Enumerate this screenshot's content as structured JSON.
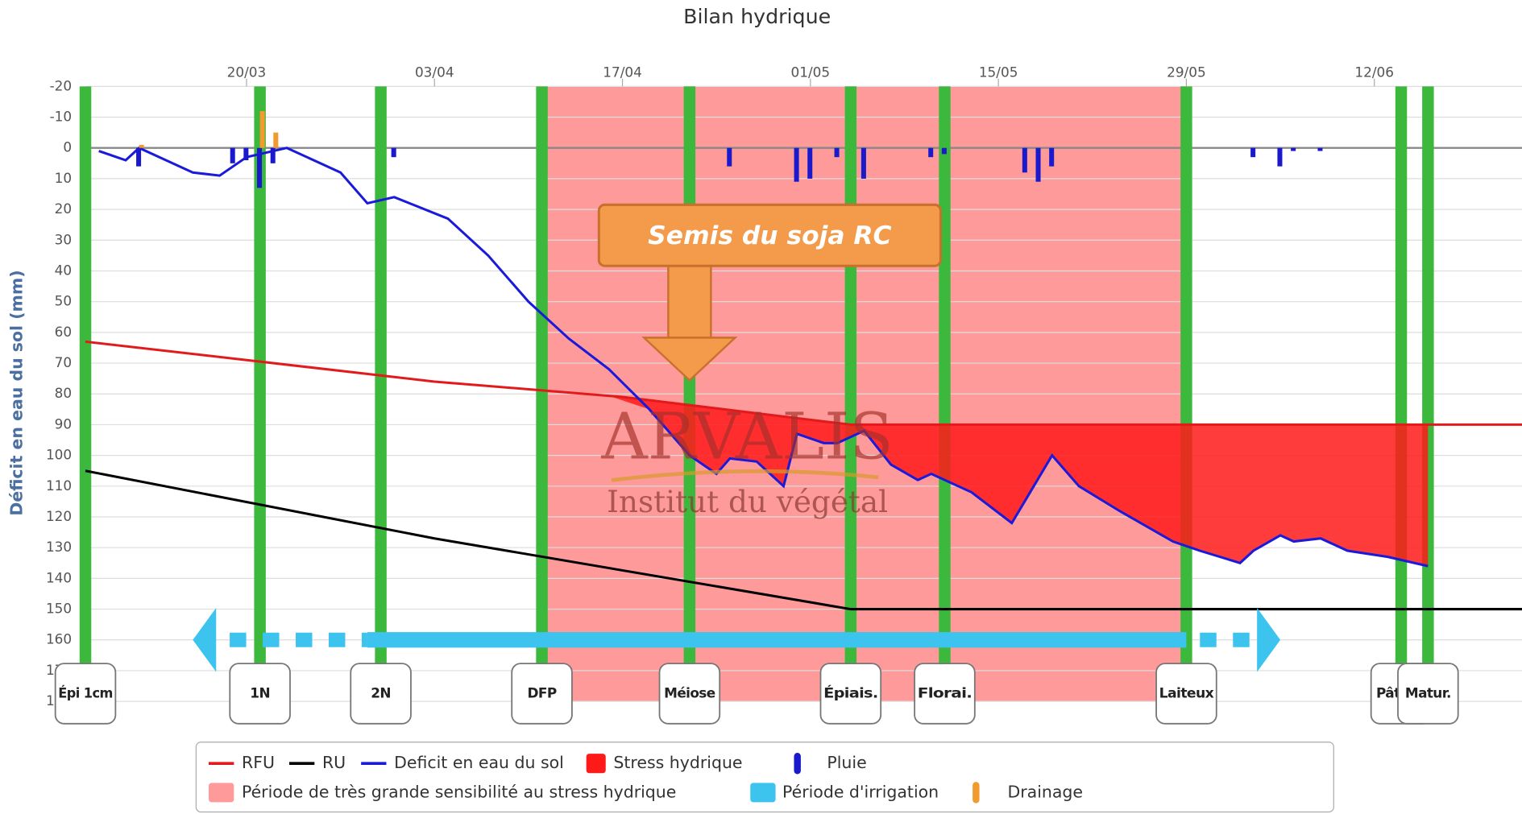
{
  "chart_data": {
    "type": "line",
    "title": "Bilan hydrique",
    "y_label": "Déficit en eau du sol (mm)",
    "ylim": [
      -20,
      180
    ],
    "y_inverted": true,
    "yticks": [
      -20,
      -10,
      0,
      10,
      20,
      30,
      40,
      50,
      60,
      70,
      80,
      90,
      100,
      110,
      120,
      130,
      140,
      150,
      160,
      170,
      180
    ],
    "xlim": [
      "08/03",
      "23/06"
    ],
    "xticks": [
      "20/03",
      "03/04",
      "17/04",
      "01/05",
      "15/05",
      "29/05",
      "12/06"
    ],
    "grid": true,
    "series": [
      {
        "name": "RFU",
        "color": "#e31a1c",
        "x": [
          "08/03",
          "03/04",
          "17/04",
          "04/05",
          "23/06"
        ],
        "values": [
          63,
          76,
          81,
          90,
          90
        ]
      },
      {
        "name": "RU",
        "color": "#000000",
        "x": [
          "08/03",
          "03/04",
          "04/05",
          "23/06"
        ],
        "values": [
          105,
          127,
          150,
          150
        ]
      },
      {
        "name": "Deficit en eau du sol",
        "color": "#1a1adb",
        "x": [
          "09/03",
          "11/03",
          "12/03",
          "14/03",
          "16/03",
          "18/03",
          "20/03",
          "23/03",
          "27/03",
          "29/03",
          "31/03",
          "04/04",
          "07/04",
          "10/04",
          "13/04",
          "16/04",
          "19/04",
          "22/04",
          "24/04",
          "25/04",
          "27/04",
          "29/04",
          "30/04",
          "02/05",
          "03/05",
          "05/05",
          "07/05",
          "09/05",
          "10/05",
          "13/05",
          "16/05",
          "19/05",
          "21/05",
          "24/05",
          "28/05",
          "30/05",
          "02/06",
          "03/06",
          "05/06",
          "06/06",
          "08/06",
          "10/06",
          "13/06",
          "16/06"
        ],
        "values": [
          1,
          4,
          0,
          4,
          8,
          9,
          3,
          0,
          8,
          18,
          16,
          23,
          35,
          50,
          62,
          72,
          85,
          100,
          106,
          101,
          102,
          110,
          93,
          96,
          96,
          92,
          103,
          108,
          106,
          112,
          122,
          100,
          110,
          118,
          128,
          131,
          135,
          131,
          126,
          128,
          127,
          131,
          133,
          136
        ]
      }
    ],
    "stress": {
      "name": "Stress hydrique",
      "color": "#ff1a1a"
    },
    "rain": {
      "name": "Pluie",
      "color": "#1a1acc",
      "x": [
        "12/03",
        "19/03",
        "20/03",
        "21/03",
        "22/03",
        "31/03",
        "25/04",
        "30/04",
        "01/05",
        "03/05",
        "05/05",
        "10/05",
        "11/05",
        "17/05",
        "18/05",
        "19/05",
        "03/06",
        "05/06",
        "06/06",
        "08/06"
      ],
      "values": [
        6,
        5,
        4,
        13,
        5,
        3,
        6,
        11,
        10,
        3,
        10,
        3,
        2,
        8,
        11,
        6,
        3,
        6,
        1,
        1
      ]
    },
    "drainage": {
      "name": "Drainage",
      "color": "#f29a2e",
      "x": [
        "12/03",
        "21/03",
        "22/03"
      ],
      "values": [
        -1,
        -12,
        -5
      ]
    },
    "sensitive_period": {
      "name": "Période de très grande sensibilité au stress hydrique",
      "color": "#ff9a9a",
      "start": "11/04",
      "end": "29/05"
    },
    "irrigation": {
      "name": "Période d'irrigation",
      "color": "#3cc3ee",
      "start": "16/03",
      "solid_start": "29/03",
      "solid_end": "29/05",
      "end": "05/06"
    },
    "stages": [
      {
        "label": "Épi 1cm",
        "x": "08/03"
      },
      {
        "label": "1N",
        "x": "21/03"
      },
      {
        "label": "2N",
        "x": "30/03"
      },
      {
        "label": "DFP",
        "x": "11/04"
      },
      {
        "label": "Méiose",
        "x": "22/04"
      },
      {
        "label": "Épiais.",
        "x": "04/05"
      },
      {
        "label": "Florai.",
        "x": "11/05"
      },
      {
        "label": "Laiteux",
        "x": "29/05"
      },
      {
        "label": "Pâteux",
        "x": "14/06"
      },
      {
        "label": "Matur.",
        "x": "16/06"
      }
    ],
    "annotation": {
      "text": "Semis du soja RC",
      "x": "22/04"
    },
    "watermark": [
      "ARVALIS",
      "Institut du végétal"
    ]
  }
}
